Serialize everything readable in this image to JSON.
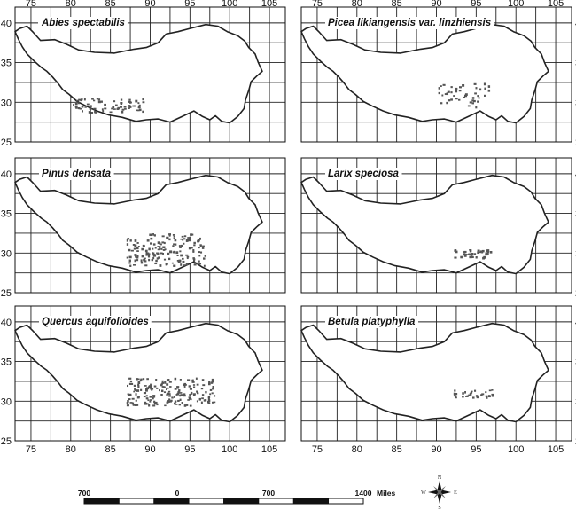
{
  "axis_x_ticks": [
    "75",
    "80",
    "85",
    "90",
    "95",
    "100",
    "105"
  ],
  "axis_y_ticks": [
    "40",
    "35",
    "30",
    "25"
  ],
  "panels": [
    {
      "title": "Abies spectabilis",
      "distribution": {
        "lon": [
          80,
          89
        ],
        "lat": [
          28.8,
          30.6
        ]
      }
    },
    {
      "title": "Picea likiangensis var. linzhiensis",
      "distribution": {
        "lon": [
          90,
          96.5
        ],
        "lat": [
          29.5,
          32.5
        ]
      }
    },
    {
      "title": "Pinus densata",
      "distribution": {
        "lon": [
          87,
          97
        ],
        "lat": [
          28.5,
          32.5
        ]
      }
    },
    {
      "title": "Larix speciosa",
      "distribution": {
        "lon": [
          92,
          97
        ],
        "lat": [
          29.5,
          30.5
        ]
      }
    },
    {
      "title": "Quercus aquifolioides",
      "distribution": {
        "lon": [
          87,
          98
        ],
        "lat": [
          29.5,
          33
        ]
      }
    },
    {
      "title": "Betula platyphylla",
      "distribution": {
        "lon": [
          92,
          97
        ],
        "lat": [
          30.5,
          31.5
        ]
      }
    }
  ],
  "scale_bar": {
    "labels": [
      "700",
      "0",
      "700",
      "1400"
    ],
    "unit": "Miles"
  },
  "compass": {
    "n": "N",
    "e": "E",
    "s": "S",
    "w": "W"
  },
  "colors": {
    "outline": "#222222",
    "dots": "#555555",
    "grid": "#222222"
  }
}
